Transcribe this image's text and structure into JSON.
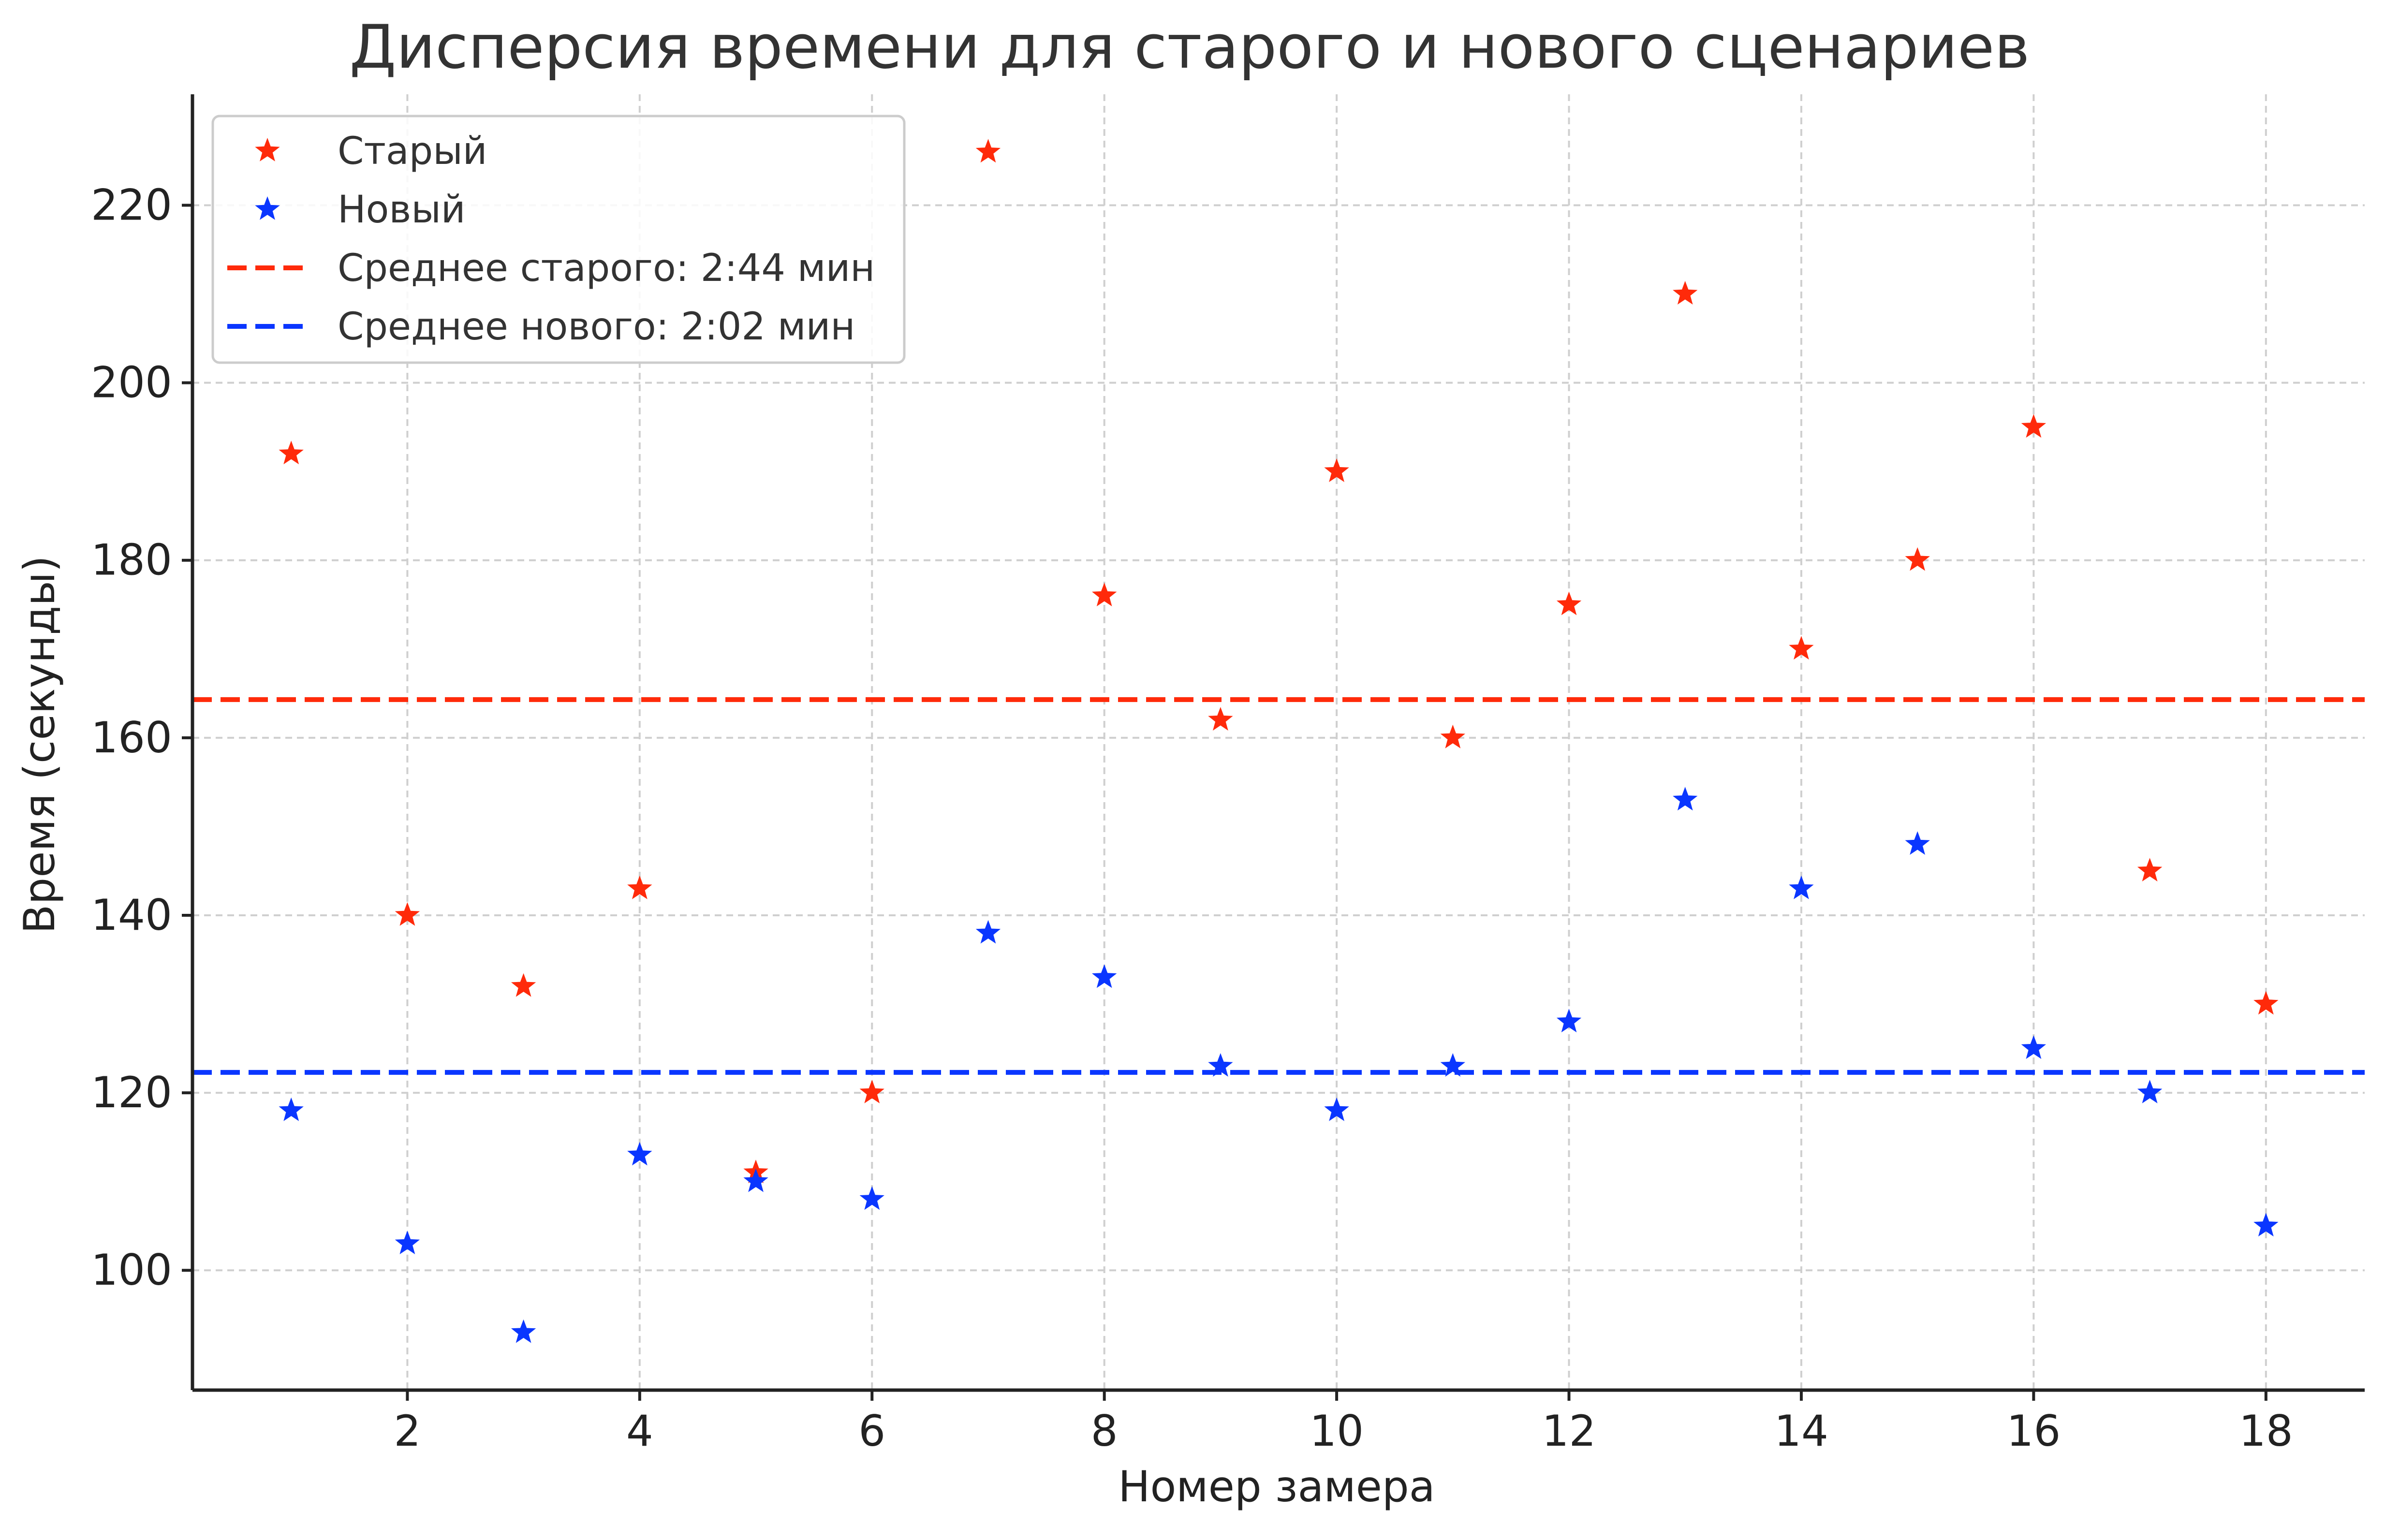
{
  "chart_data": {
    "type": "scatter",
    "title": "Дисперсия времени для старого и нового сценариев",
    "xlabel": "Номер замера",
    "ylabel": "Время (секунды)",
    "xlim": [
      0.15,
      18.85
    ],
    "ylim": [
      86.5,
      232.5
    ],
    "x_ticks": [
      2,
      4,
      6,
      8,
      10,
      12,
      14,
      16,
      18
    ],
    "y_ticks": [
      100,
      120,
      140,
      160,
      180,
      200,
      220
    ],
    "grid": true,
    "legend_position": "top-left",
    "x": [
      1,
      2,
      3,
      4,
      5,
      6,
      7,
      8,
      9,
      10,
      11,
      12,
      13,
      14,
      15,
      16,
      17,
      18
    ],
    "series": [
      {
        "name": "Старый",
        "color": "#ff2a0a",
        "marker": "star",
        "values": [
          192,
          140,
          132,
          143,
          111,
          120,
          226,
          176,
          162,
          190,
          160,
          175,
          210,
          170,
          180,
          195,
          145,
          130
        ]
      },
      {
        "name": "Новый",
        "color": "#0a36ff",
        "marker": "star",
        "values": [
          118,
          103,
          93,
          113,
          110,
          108,
          138,
          133,
          123,
          118,
          123,
          128,
          153,
          143,
          148,
          125,
          120,
          105
        ]
      }
    ],
    "reference_lines": [
      {
        "label": "Среднее старого: 2:44 мин",
        "value": 164.3,
        "color": "#ff2a0a",
        "style": "dashed"
      },
      {
        "label": "Среднее нового: 2:02 мин",
        "value": 122.3,
        "color": "#0a36ff",
        "style": "dashed"
      }
    ]
  }
}
